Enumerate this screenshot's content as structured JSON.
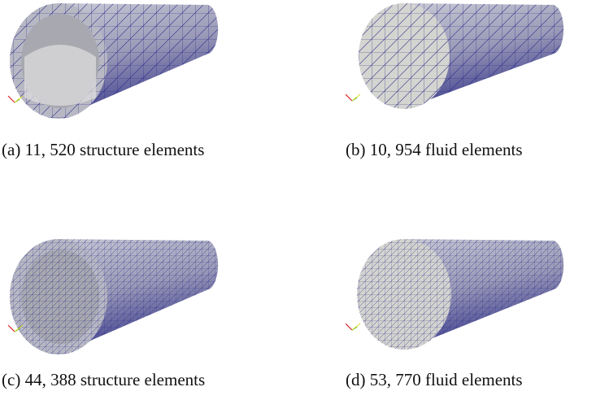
{
  "panels": [
    {
      "label": "(a)",
      "caption": "11, 520 structure elements"
    },
    {
      "label": "(b)",
      "caption": "10, 954 fluid elements"
    },
    {
      "label": "(c)",
      "caption": "44, 388 structure elements"
    },
    {
      "label": "(d)",
      "caption": "53, 770 fluid elements"
    }
  ]
}
